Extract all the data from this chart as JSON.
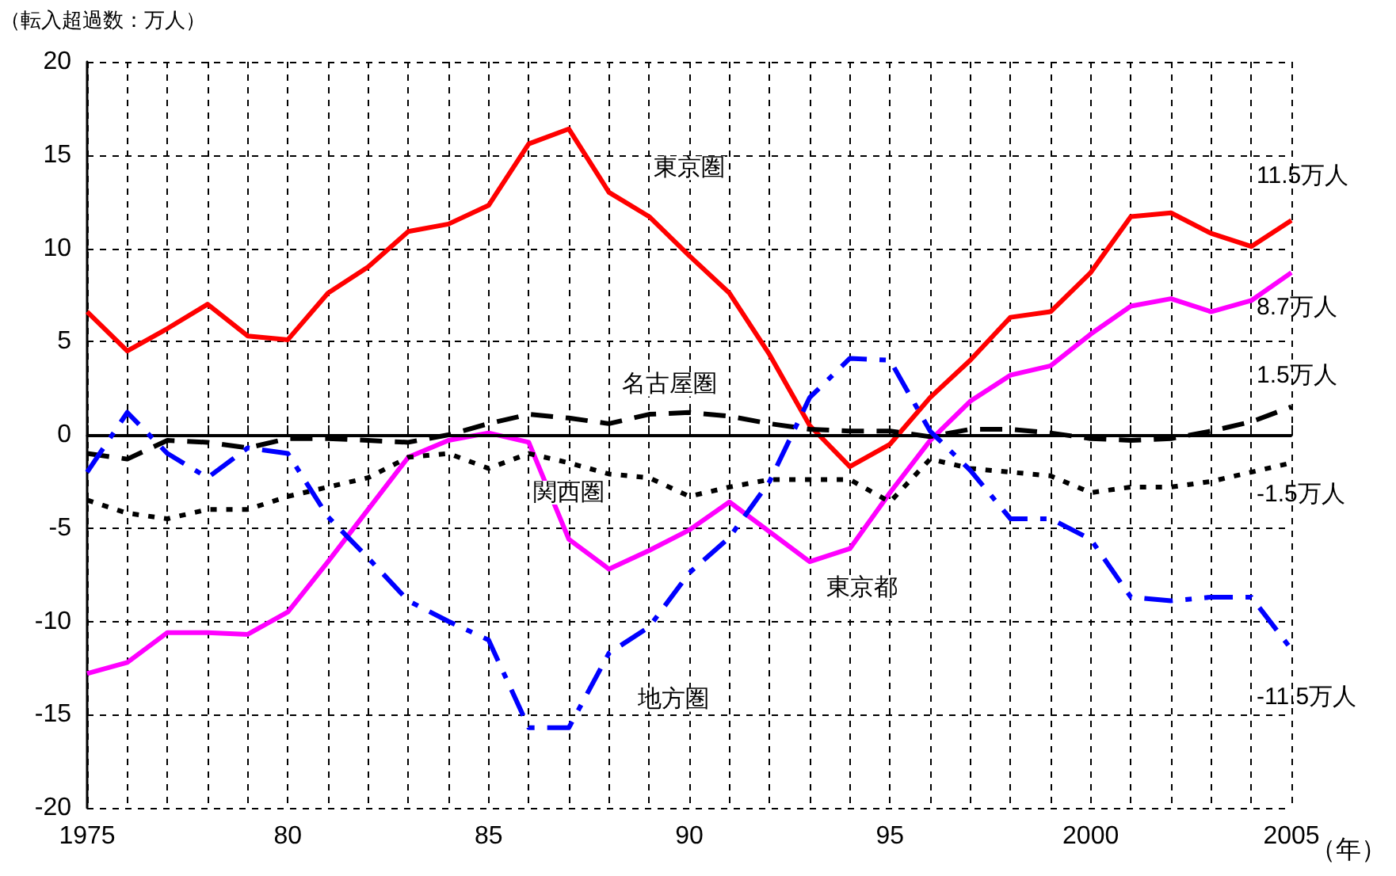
{
  "chart_data": {
    "type": "line",
    "ylabel": "（転入超過数：万人）",
    "xlabel": "（年）",
    "x": [
      1975,
      1976,
      1977,
      1978,
      1979,
      1980,
      1981,
      1982,
      1983,
      1984,
      1985,
      1986,
      1987,
      1988,
      1989,
      1990,
      1991,
      1992,
      1993,
      1994,
      1995,
      1996,
      1997,
      1998,
      1999,
      2000,
      2001,
      2002,
      2003,
      2004,
      2005
    ],
    "series": [
      {
        "name": "東京圏",
        "color": "#ff0000",
        "line_style": "solid",
        "values": [
          6.6,
          4.5,
          5.7,
          7.0,
          5.3,
          5.1,
          7.6,
          9.0,
          10.9,
          11.3,
          12.3,
          15.6,
          16.4,
          13.0,
          11.7,
          9.6,
          7.6,
          4.3,
          0.5,
          -1.7,
          -0.5,
          2.0,
          4.0,
          6.3,
          6.6,
          8.7,
          11.7,
          11.9,
          10.8,
          10.1,
          11.5
        ]
      },
      {
        "name": "東京都",
        "color": "#ff00ff",
        "line_style": "solid",
        "values": [
          -12.8,
          -12.2,
          -10.6,
          -10.6,
          -10.7,
          -9.5,
          -6.8,
          -4.0,
          -1.2,
          -0.3,
          0.1,
          -0.4,
          -5.6,
          -7.2,
          -6.2,
          -5.1,
          -3.6,
          -5.2,
          -6.8,
          -6.1,
          -3.1,
          -0.3,
          1.8,
          3.2,
          3.7,
          5.4,
          6.9,
          7.3,
          6.6,
          7.2,
          8.7
        ]
      },
      {
        "name": "名古屋圏",
        "color": "#000000",
        "line_style": "dashed",
        "values": [
          -1.0,
          -1.3,
          -0.3,
          -0.4,
          -0.7,
          -0.2,
          -0.2,
          -0.3,
          -0.4,
          0.0,
          0.6,
          1.1,
          0.9,
          0.6,
          1.1,
          1.2,
          1.0,
          0.6,
          0.3,
          0.2,
          0.2,
          -0.1,
          0.3,
          0.3,
          0.1,
          -0.2,
          -0.3,
          -0.2,
          0.2,
          0.7,
          1.5
        ]
      },
      {
        "name": "関西圏",
        "color": "#000000",
        "line_style": "dotted",
        "values": [
          -3.5,
          -4.2,
          -4.5,
          -4.0,
          -4.0,
          -3.3,
          -2.8,
          -2.3,
          -1.2,
          -1.0,
          -1.8,
          -1.0,
          -1.5,
          -2.1,
          -2.3,
          -3.3,
          -2.8,
          -2.4,
          -2.4,
          -2.4,
          -3.6,
          -1.3,
          -1.8,
          -2.0,
          -2.2,
          -3.1,
          -2.8,
          -2.8,
          -2.5,
          -2.0,
          -1.5
        ]
      },
      {
        "name": "地方圏",
        "color": "#0000ff",
        "line_style": "dashdot",
        "values": [
          -2.0,
          1.2,
          -1.0,
          -2.3,
          -0.7,
          -1.0,
          -4.4,
          -6.6,
          -8.9,
          -10.0,
          -11.0,
          -15.7,
          -15.7,
          -11.7,
          -10.3,
          -7.4,
          -5.5,
          -2.5,
          2.0,
          4.1,
          4.0,
          0.2,
          -1.9,
          -4.5,
          -4.5,
          -5.6,
          -8.7,
          -8.9,
          -8.7,
          -8.7,
          -11.5
        ]
      }
    ],
    "annotations": [
      "11.5万人",
      "8.7万人",
      "1.5万人",
      "-1.5万人",
      "-11.5万人"
    ],
    "ref_lines": [
      {
        "axis": "y",
        "value": 0,
        "color": "#000000",
        "line_style": "solid"
      }
    ],
    "xlim": [
      1975,
      2005
    ],
    "xticks": [
      1975,
      {
        "value": 1976,
        "label": null
      },
      {
        "value": 1977,
        "label": null
      },
      {
        "value": 1978,
        "label": null
      },
      {
        "value": 1979,
        "label": null
      },
      {
        "value": 1980,
        "label": "80"
      },
      {
        "value": 1981,
        "label": null
      },
      {
        "value": 1982,
        "label": null
      },
      {
        "value": 1983,
        "label": null
      },
      {
        "value": 1984,
        "label": null
      },
      {
        "value": 1985,
        "label": "85"
      },
      {
        "value": 1986,
        "label": null
      },
      {
        "value": 1987,
        "label": null
      },
      {
        "value": 1988,
        "label": null
      },
      {
        "value": 1989,
        "label": null
      },
      {
        "value": 1990,
        "label": "90"
      },
      {
        "value": 1991,
        "label": null
      },
      {
        "value": 1992,
        "label": null
      },
      {
        "value": 1993,
        "label": null
      },
      {
        "value": 1994,
        "label": null
      },
      {
        "value": 1995,
        "label": "95"
      },
      {
        "value": 1996,
        "label": null
      },
      {
        "value": 1997,
        "label": null
      },
      {
        "value": 1998,
        "label": null
      },
      {
        "value": 1999,
        "label": null
      },
      2000,
      {
        "value": 2001,
        "label": null
      },
      {
        "value": 2002,
        "label": null
      },
      {
        "value": 2003,
        "label": null
      },
      {
        "value": 2004,
        "label": null
      },
      2005
    ],
    "ylim": [
      -20,
      20
    ],
    "yticks": [
      -20,
      -15,
      -10,
      -5,
      0,
      5,
      10,
      15,
      20
    ],
    "grid": true,
    "legend": false,
    "marker": "none"
  }
}
